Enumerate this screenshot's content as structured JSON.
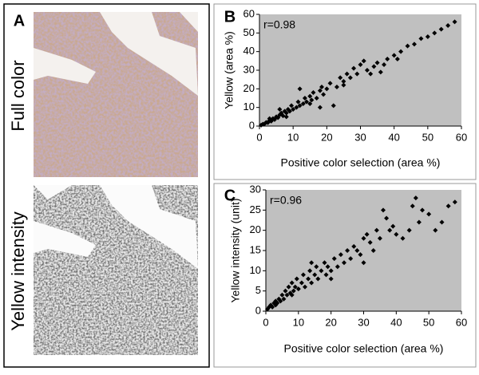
{
  "panel_a": {
    "panel_label": "A",
    "top_label": "Full color",
    "bottom_label": "Yellow intensity"
  },
  "chart_data": [
    {
      "type": "scatter",
      "panel_label": "B",
      "annotation": "r=0.98",
      "x_label": "Positive color selection  (area %)",
      "y_label": "Yellow (area %)",
      "color": "#000000",
      "background": "#c0c0c0",
      "xlim": [
        0,
        60
      ],
      "ylim": [
        0,
        60
      ],
      "xticks": [
        0,
        10,
        20,
        30,
        40,
        50,
        60
      ],
      "yticks": [
        0,
        10,
        20,
        30,
        40,
        50,
        60
      ],
      "x": [
        0.5,
        1,
        1.5,
        2,
        2.5,
        3,
        3.5,
        4,
        4.5,
        5,
        5.5,
        6,
        6.5,
        7,
        7.5,
        8,
        8.5,
        9,
        9.5,
        10,
        11,
        11.5,
        12,
        13,
        13.5,
        14,
        15,
        15.5,
        16,
        17,
        18,
        18.5,
        19,
        20,
        21,
        22,
        23,
        24,
        25,
        26,
        27,
        28,
        29,
        30,
        31,
        32,
        33,
        34,
        35,
        36,
        37,
        38,
        40,
        41,
        42,
        44,
        46,
        48,
        50,
        52,
        54,
        56,
        58,
        8,
        12,
        18,
        3,
        6,
        15,
        25
      ],
      "values": [
        0.5,
        1,
        1.2,
        2,
        1.8,
        3,
        2.6,
        4,
        3.5,
        5,
        4.5,
        6,
        7,
        5.5,
        8,
        7,
        9,
        8,
        11,
        9,
        10,
        13,
        11,
        12,
        15,
        13,
        16,
        14,
        18,
        15,
        19,
        21,
        17,
        20,
        23,
        11,
        21,
        26,
        24,
        28,
        26,
        31,
        28,
        33,
        35,
        30,
        28,
        32,
        34,
        29,
        33,
        36,
        38,
        36,
        40,
        43,
        44,
        47,
        48,
        50,
        52,
        54,
        56,
        5,
        20,
        10,
        4,
        9,
        12,
        22
      ]
    },
    {
      "type": "scatter",
      "panel_label": "C",
      "annotation": "r=0.96",
      "x_label": "Positive color selection (area %)",
      "y_label": "Yellow intensity (unit)",
      "color": "#000000",
      "background": "#c0c0c0",
      "xlim": [
        0,
        60
      ],
      "ylim": [
        0,
        30
      ],
      "xticks": [
        0,
        10,
        20,
        30,
        40,
        50,
        60
      ],
      "yticks": [
        0,
        5,
        10,
        15,
        20,
        25,
        30
      ],
      "x": [
        0.5,
        1,
        1.5,
        2,
        2.5,
        3,
        3.5,
        4,
        4.5,
        5,
        5.5,
        6,
        6.5,
        7,
        7.5,
        8,
        8.5,
        9,
        9.5,
        10,
        11,
        11.5,
        12,
        13,
        13.5,
        14,
        15,
        15.5,
        16,
        17,
        18,
        18.5,
        19,
        20,
        21,
        22,
        23,
        24,
        25,
        26,
        27,
        28,
        29,
        30,
        31,
        32,
        33,
        34,
        35,
        36,
        37,
        38,
        39,
        40,
        42,
        44,
        45,
        46,
        47,
        48,
        50,
        52,
        54,
        56,
        58,
        3,
        8,
        14,
        20,
        30
      ],
      "values": [
        0.5,
        1,
        1.5,
        1,
        2,
        2.5,
        2,
        3,
        2.5,
        4,
        3,
        5,
        4,
        6,
        4.5,
        7,
        5,
        6,
        8,
        5.5,
        7,
        9,
        6,
        8,
        10,
        7,
        9,
        11,
        8,
        10,
        12,
        9,
        11,
        10,
        13,
        11,
        14,
        12,
        15,
        13,
        16,
        15,
        14,
        18,
        19,
        17,
        15,
        20,
        18,
        25,
        23,
        20,
        21,
        19,
        18,
        20,
        26,
        28,
        22,
        25,
        24,
        20,
        22,
        26,
        27,
        1.5,
        4,
        12,
        8,
        12
      ]
    }
  ]
}
